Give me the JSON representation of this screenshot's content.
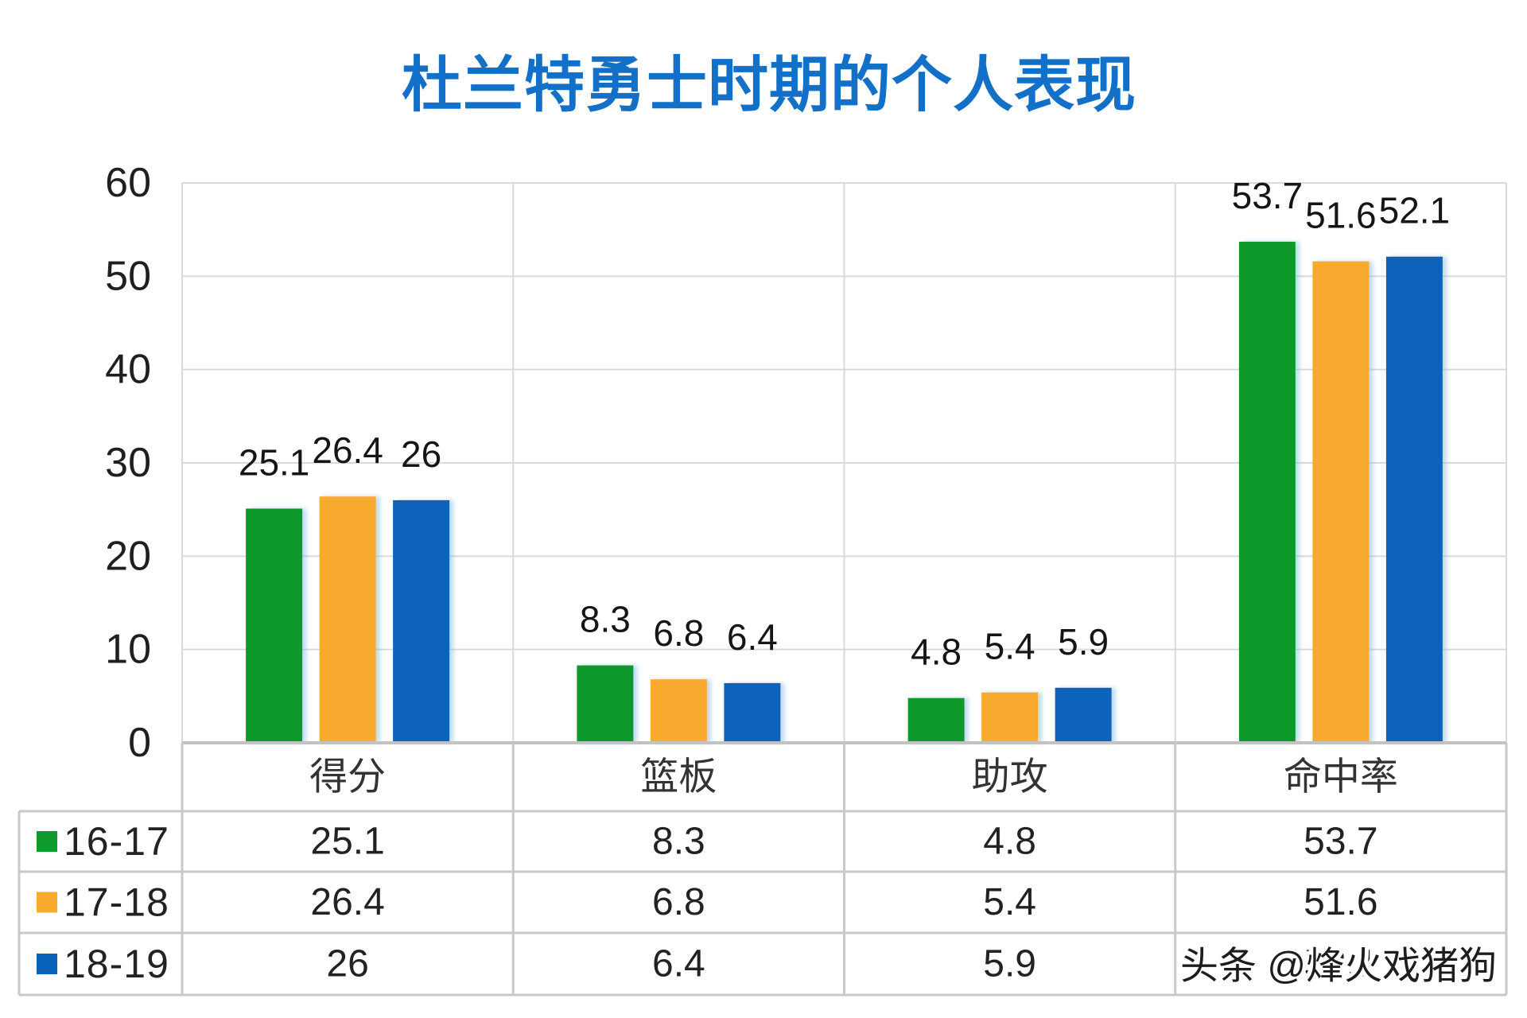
{
  "chart_data": {
    "type": "bar",
    "title": "杜兰特勇士时期的个人表现",
    "xlabel": "",
    "ylabel": "",
    "categories": [
      "得分",
      "篮板",
      "助攻",
      "命中率"
    ],
    "series": [
      {
        "name": "16-17",
        "values": [
          25.1,
          8.3,
          4.8,
          53.7
        ],
        "color": "#0E9A2C"
      },
      {
        "name": "17-18",
        "values": [
          26.4,
          6.8,
          5.4,
          51.6
        ],
        "color": "#F8AA2E"
      },
      {
        "name": "18-19",
        "values": [
          26,
          6.4,
          5.9,
          52.1
        ],
        "color": "#0B62BA"
      }
    ],
    "ylim": [
      0,
      60
    ],
    "yticks": [
      0,
      10,
      20,
      30,
      40,
      50,
      60
    ],
    "grid": true,
    "legend": "left of data table",
    "data_table": true,
    "data_labels": true
  },
  "colors": {
    "title": "#1270C8"
  },
  "watermark": "头条 @烽火戏猪狗"
}
